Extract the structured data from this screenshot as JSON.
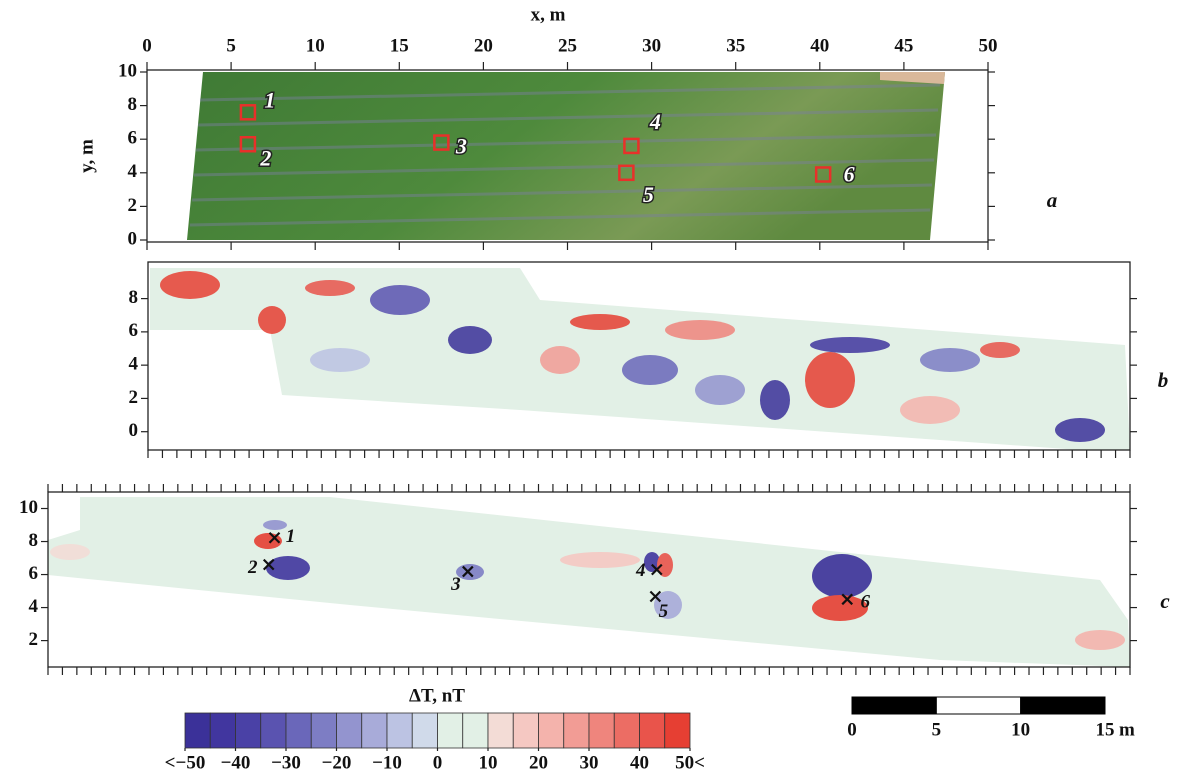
{
  "chart_data": [
    {
      "type": "image",
      "panel_label": "a",
      "xlabel": "x, m",
      "ylabel": "y, m",
      "xlim": [
        0,
        50
      ],
      "xticks": [
        0,
        5,
        10,
        15,
        20,
        25,
        30,
        35,
        40,
        45,
        50
      ],
      "ylim": [
        0,
        10
      ],
      "yticks": [
        0,
        2,
        4,
        6,
        8,
        10
      ],
      "markers": {
        "labels": [
          "1",
          "2",
          "3",
          "4",
          "5",
          "6"
        ],
        "x": [
          6,
          6,
          17.5,
          28.8,
          28.5,
          40.2
        ],
        "y": [
          7.6,
          5.7,
          5.8,
          5.6,
          4.0,
          3.9
        ],
        "color": "#e8302a"
      }
    },
    {
      "type": "heatmap",
      "panel_label": "b",
      "xlim": [
        0,
        68
      ],
      "xticks": [
        0,
        1,
        2,
        3,
        4,
        5,
        6,
        7,
        8,
        9,
        10,
        11,
        12,
        13,
        14,
        15,
        16,
        17,
        18,
        19,
        20,
        21,
        22,
        23,
        24,
        25,
        26,
        27,
        28,
        29,
        30,
        31,
        32,
        33,
        34,
        35,
        36,
        37,
        38,
        39,
        40,
        41,
        42,
        43,
        44,
        45,
        46,
        47,
        48,
        49,
        50,
        51,
        52,
        53,
        54,
        55,
        56,
        57,
        58,
        59,
        60,
        61,
        62,
        63,
        64,
        65,
        66,
        67,
        68
      ],
      "ylim": [
        -1.1,
        10.2
      ],
      "yticks": [
        0,
        2,
        4,
        6,
        8
      ]
    },
    {
      "type": "heatmap",
      "panel_label": "c",
      "xlim": [
        0,
        75
      ],
      "xticks": [
        0,
        1,
        2,
        3,
        4,
        5,
        6,
        7,
        8,
        9,
        10,
        11,
        12,
        13,
        14,
        15,
        16,
        17,
        18,
        19,
        20,
        21,
        22,
        23,
        24,
        25,
        26,
        27,
        28,
        29,
        30,
        31,
        32,
        33,
        34,
        35,
        36,
        37,
        38,
        39,
        40,
        41,
        42,
        43,
        44,
        45,
        46,
        47,
        48,
        49,
        50,
        51,
        52,
        53,
        54,
        55,
        56,
        57,
        58,
        59,
        60,
        61,
        62,
        63,
        64,
        65,
        66,
        67,
        68,
        69,
        70,
        71,
        72,
        73,
        74,
        75
      ],
      "ylim": [
        0.4,
        11
      ],
      "yticks": [
        2,
        4,
        6,
        8,
        10
      ],
      "markers": {
        "labels": [
          "1",
          "2",
          "3",
          "4",
          "5",
          "6"
        ],
        "x": [
          15.7,
          15.3,
          29.1,
          42.2,
          42.1,
          55.4
        ],
        "y": [
          8.23,
          6.6,
          6.18,
          6.3,
          4.67,
          4.5
        ],
        "color": "#111111"
      }
    },
    {
      "type": "colorbar",
      "title": "ΔT, nT",
      "levels": [
        -50,
        -45,
        -40,
        -35,
        -30,
        -25,
        -20,
        -15,
        -10,
        -5,
        0,
        5,
        10,
        15,
        20,
        25,
        30,
        35,
        40,
        45,
        50
      ],
      "colors": [
        "#3b3199",
        "#41369f",
        "#4a41a6",
        "#5a53b0",
        "#6a67ba",
        "#7d7dc4",
        "#9394cf",
        "#a8abd9",
        "#bcc3e3",
        "#d0daea",
        "#e2f0e6",
        "#e2f0e6",
        "#f3dcd6",
        "#f5c8c2",
        "#f4b3ac",
        "#f29c95",
        "#ef857d",
        "#ec6d64",
        "#e9544b",
        "#e63f33"
      ],
      "ticks": [
        {
          "value": -50,
          "label": "<−50"
        },
        {
          "value": -40,
          "label": "−40"
        },
        {
          "value": -30,
          "label": "−30"
        },
        {
          "value": -20,
          "label": "−20"
        },
        {
          "value": -10,
          "label": "−10"
        },
        0,
        10,
        20,
        30,
        40,
        {
          "value": 50,
          "label": "50<"
        }
      ]
    },
    {
      "type": "scalebar",
      "xlim": [
        0,
        15
      ],
      "xticks": [
        0,
        5,
        10,
        15
      ],
      "unit": "m"
    }
  ]
}
